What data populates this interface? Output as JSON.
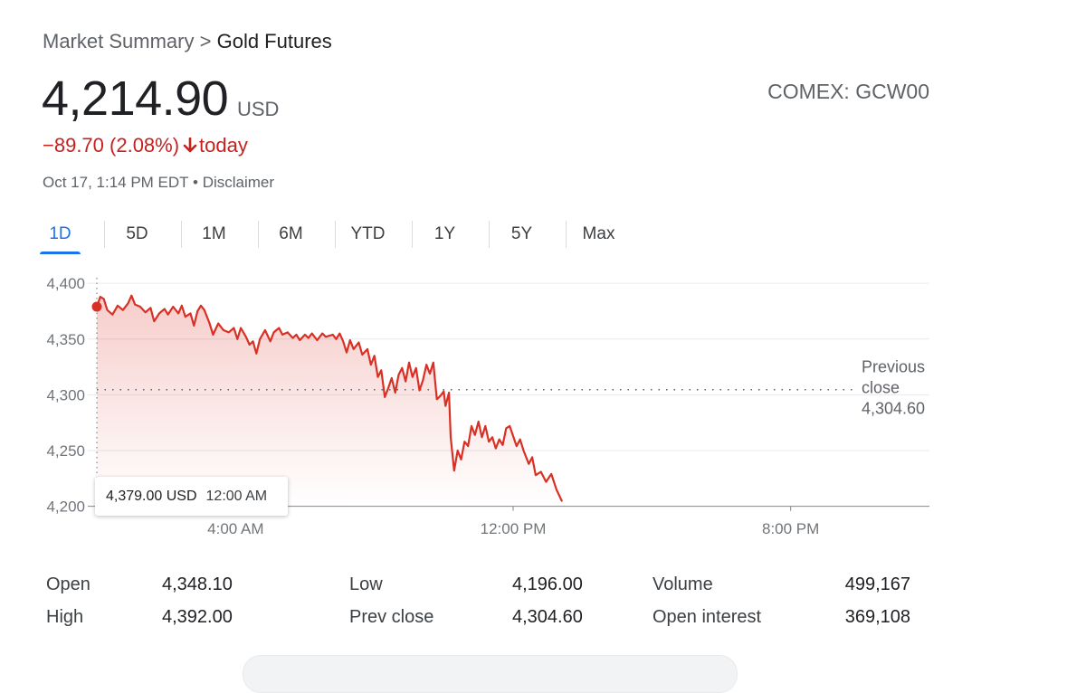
{
  "header": {
    "breadcrumb_root": "Market Summary",
    "breadcrumb_sep": ">",
    "breadcrumb_current": "Gold Futures",
    "price": "4,214.90",
    "currency": "USD",
    "ticker": "COMEX: GCW00",
    "change": "−89.70 (2.08%)",
    "change_period": "today",
    "timestamp": "Oct 17, 1:14 PM EDT",
    "disclaimer": "Disclaimer",
    "negative_color": "#c5221f"
  },
  "tabs": [
    "1D",
    "5D",
    "1M",
    "6M",
    "YTD",
    "1Y",
    "5Y",
    "Max"
  ],
  "active_tab": "1D",
  "tooltip": {
    "value": "4,379.00 USD",
    "time": "12:00 AM"
  },
  "chart_data": {
    "type": "area",
    "x_unit": "hours since 12:00 AM",
    "xlim": [
      0,
      24
    ],
    "ylim": [
      4190,
      4405
    ],
    "y_ticks": [
      4200,
      4250,
      4300,
      4350,
      4400
    ],
    "y_tick_labels": [
      "4,200",
      "4,250",
      "4,300",
      "4,350",
      "4,400"
    ],
    "x_ticks": [
      4,
      12,
      20
    ],
    "x_tick_labels": [
      "4:00 AM",
      "12:00 PM",
      "8:00 PM"
    ],
    "grid": true,
    "line_color": "#d93025",
    "reference_line": {
      "value": 4304.6,
      "label_lines": [
        "Previous",
        "close",
        "4,304.60"
      ]
    },
    "highlight_point": {
      "x": 0,
      "y": 4379
    },
    "series": [
      {
        "points": [
          [
            0,
            4379
          ],
          [
            0.1,
            4388
          ],
          [
            0.2,
            4386
          ],
          [
            0.3,
            4376
          ],
          [
            0.45,
            4372
          ],
          [
            0.6,
            4380
          ],
          [
            0.75,
            4376
          ],
          [
            0.9,
            4382
          ],
          [
            1.0,
            4389
          ],
          [
            1.1,
            4381
          ],
          [
            1.25,
            4379
          ],
          [
            1.4,
            4374
          ],
          [
            1.55,
            4378
          ],
          [
            1.65,
            4366
          ],
          [
            1.8,
            4373
          ],
          [
            1.95,
            4377
          ],
          [
            2.05,
            4372
          ],
          [
            2.2,
            4379
          ],
          [
            2.35,
            4373
          ],
          [
            2.45,
            4380
          ],
          [
            2.55,
            4370
          ],
          [
            2.7,
            4373
          ],
          [
            2.8,
            4362
          ],
          [
            2.9,
            4375
          ],
          [
            3.0,
            4380
          ],
          [
            3.1,
            4376
          ],
          [
            3.25,
            4364
          ],
          [
            3.35,
            4354
          ],
          [
            3.5,
            4364
          ],
          [
            3.65,
            4358
          ],
          [
            3.8,
            4356
          ],
          [
            3.95,
            4360
          ],
          [
            4.05,
            4350
          ],
          [
            4.15,
            4360
          ],
          [
            4.3,
            4352
          ],
          [
            4.4,
            4345
          ],
          [
            4.5,
            4348
          ],
          [
            4.6,
            4337
          ],
          [
            4.7,
            4350
          ],
          [
            4.85,
            4358
          ],
          [
            5.0,
            4348
          ],
          [
            5.1,
            4356
          ],
          [
            5.25,
            4360
          ],
          [
            5.35,
            4354
          ],
          [
            5.5,
            4356
          ],
          [
            5.65,
            4351
          ],
          [
            5.75,
            4354
          ],
          [
            5.85,
            4349
          ],
          [
            6.0,
            4354
          ],
          [
            6.1,
            4351
          ],
          [
            6.2,
            4355
          ],
          [
            6.35,
            4349
          ],
          [
            6.5,
            4355
          ],
          [
            6.6,
            4352
          ],
          [
            6.8,
            4354
          ],
          [
            6.9,
            4350
          ],
          [
            7.0,
            4355
          ],
          [
            7.1,
            4348
          ],
          [
            7.2,
            4338
          ],
          [
            7.3,
            4349
          ],
          [
            7.4,
            4341
          ],
          [
            7.55,
            4347
          ],
          [
            7.65,
            4336
          ],
          [
            7.8,
            4341
          ],
          [
            7.9,
            4327
          ],
          [
            8.0,
            4335
          ],
          [
            8.1,
            4316
          ],
          [
            8.2,
            4322
          ],
          [
            8.3,
            4298
          ],
          [
            8.4,
            4306
          ],
          [
            8.5,
            4315
          ],
          [
            8.6,
            4302
          ],
          [
            8.7,
            4318
          ],
          [
            8.8,
            4324
          ],
          [
            8.9,
            4312
          ],
          [
            9.0,
            4329
          ],
          [
            9.1,
            4316
          ],
          [
            9.2,
            4324
          ],
          [
            9.3,
            4304
          ],
          [
            9.4,
            4313
          ],
          [
            9.5,
            4327
          ],
          [
            9.6,
            4319
          ],
          [
            9.7,
            4329
          ],
          [
            9.8,
            4296
          ],
          [
            9.9,
            4299
          ],
          [
            10.0,
            4303
          ],
          [
            10.05,
            4290
          ],
          [
            10.15,
            4302
          ],
          [
            10.2,
            4262
          ],
          [
            10.3,
            4232
          ],
          [
            10.4,
            4250
          ],
          [
            10.5,
            4242
          ],
          [
            10.6,
            4258
          ],
          [
            10.7,
            4254
          ],
          [
            10.8,
            4272
          ],
          [
            10.9,
            4264
          ],
          [
            11.0,
            4276
          ],
          [
            11.1,
            4262
          ],
          [
            11.2,
            4272
          ],
          [
            11.3,
            4258
          ],
          [
            11.4,
            4262
          ],
          [
            11.5,
            4252
          ],
          [
            11.6,
            4260
          ],
          [
            11.7,
            4255
          ],
          [
            11.8,
            4270
          ],
          [
            11.9,
            4272
          ],
          [
            12.0,
            4263
          ],
          [
            12.1,
            4254
          ],
          [
            12.2,
            4260
          ],
          [
            12.3,
            4250
          ],
          [
            12.45,
            4238
          ],
          [
            12.55,
            4244
          ],
          [
            12.65,
            4228
          ],
          [
            12.8,
            4231
          ],
          [
            12.95,
            4222
          ],
          [
            13.1,
            4229
          ],
          [
            13.25,
            4215
          ],
          [
            13.4,
            4205
          ]
        ]
      }
    ]
  },
  "stats": [
    [
      {
        "label": "Open",
        "value": "4,348.10"
      },
      {
        "label": "Low",
        "value": "4,196.00"
      },
      {
        "label": "Volume",
        "value": "499,167"
      }
    ],
    [
      {
        "label": "High",
        "value": "4,392.00"
      },
      {
        "label": "Prev close",
        "value": "4,304.60"
      },
      {
        "label": "Open interest",
        "value": "369,108"
      }
    ]
  ]
}
